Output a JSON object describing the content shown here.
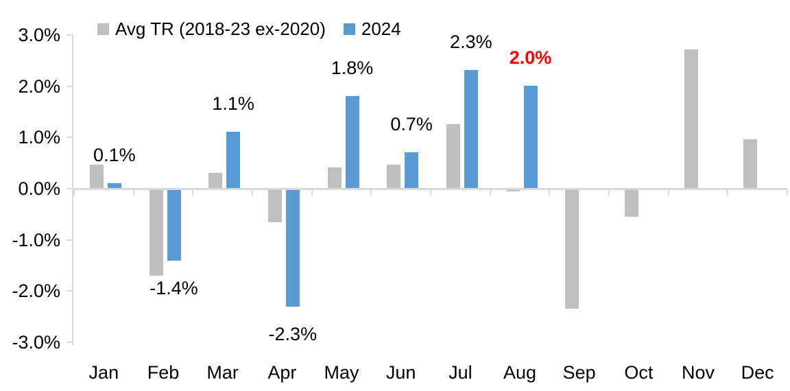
{
  "chart_data": {
    "type": "bar",
    "title": "",
    "categories": [
      "Jan",
      "Feb",
      "Mar",
      "Apr",
      "May",
      "Jun",
      "Jul",
      "Aug",
      "Sep",
      "Oct",
      "Nov",
      "Dec"
    ],
    "series": [
      {
        "name": "Avg TR (2018-23 ex-2020)",
        "color": "#BFBFBF",
        "values": [
          0.45,
          -1.7,
          0.3,
          -0.65,
          0.4,
          0.45,
          1.25,
          -0.05,
          -2.35,
          -0.55,
          2.7,
          0.95
        ]
      },
      {
        "name": "2024",
        "color": "#5B9BD5",
        "values": [
          0.1,
          -1.4,
          1.1,
          -2.3,
          1.8,
          0.7,
          2.3,
          2.0,
          null,
          null,
          null,
          null
        ]
      }
    ],
    "data_labels": {
      "on_series": "2024",
      "default_color": "#000000",
      "emphasis_color": "#FF0000",
      "entries": [
        {
          "month": "Jan",
          "text": "0.1%",
          "emphasis": false
        },
        {
          "month": "Feb",
          "text": "-1.4%",
          "emphasis": false
        },
        {
          "month": "Mar",
          "text": "1.1%",
          "emphasis": false
        },
        {
          "month": "Apr",
          "text": "-2.3%",
          "emphasis": false
        },
        {
          "month": "May",
          "text": "1.8%",
          "emphasis": false
        },
        {
          "month": "Jun",
          "text": "0.7%",
          "emphasis": false
        },
        {
          "month": "Jul",
          "text": "2.3%",
          "emphasis": false
        },
        {
          "month": "Aug",
          "text": "2.0%",
          "emphasis": true
        }
      ]
    },
    "y_axis": {
      "min": -3,
      "max": 3,
      "step": 1,
      "tick_labels": [
        "3.0%",
        "2.0%",
        "1.0%",
        "0.0%",
        "-1.0%",
        "-2.0%",
        "-3.0%"
      ]
    },
    "x_axis": {
      "tick_labels": [
        "Jan",
        "Feb",
        "Mar",
        "Apr",
        "May",
        "Jun",
        "Jul",
        "Aug",
        "Sep",
        "Oct",
        "Nov",
        "Dec"
      ]
    },
    "legend": {
      "position": "top-left",
      "entries": [
        "Avg TR (2018-23 ex-2020)",
        "2024"
      ]
    },
    "grid": false,
    "colors": {
      "axis": "#D9D9D9",
      "text": "#000000",
      "background": "#FFFFFF"
    }
  }
}
